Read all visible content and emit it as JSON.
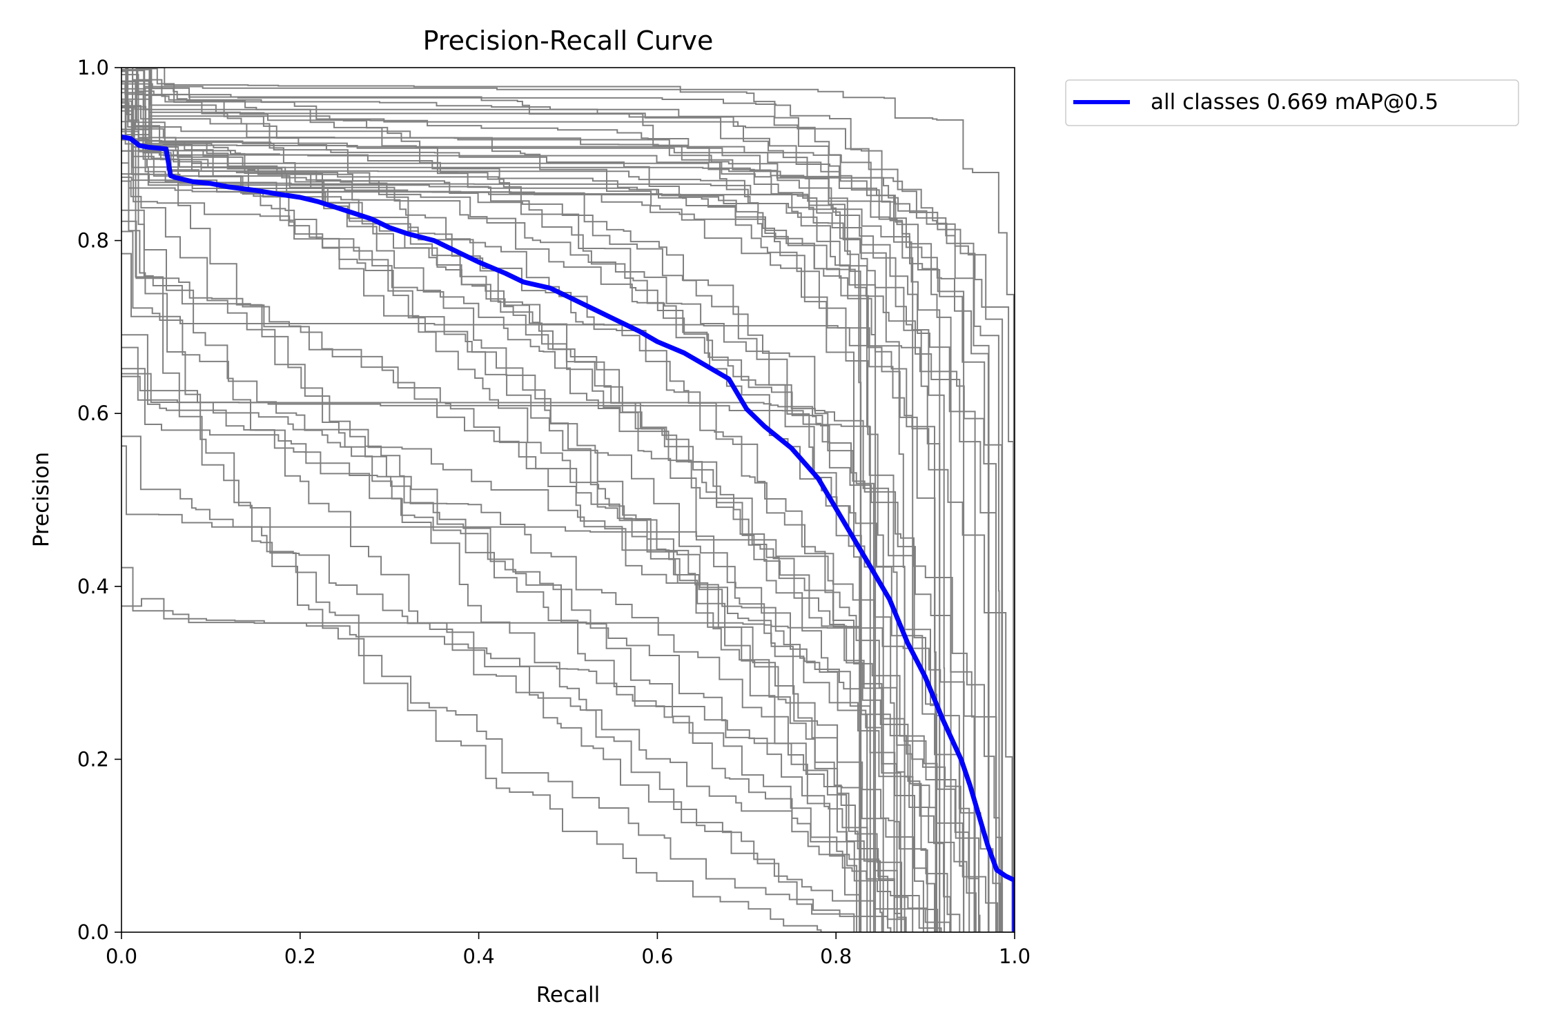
{
  "chart_data": {
    "type": "line",
    "title": "Precision-Recall Curve",
    "xlabel": "Recall",
    "ylabel": "Precision",
    "xlim": [
      0,
      1
    ],
    "ylim": [
      0,
      1
    ],
    "xticks": [
      "0.0",
      "0.2",
      "0.4",
      "0.6",
      "0.8",
      "1.0"
    ],
    "yticks": [
      "0.0",
      "0.2",
      "0.4",
      "0.6",
      "0.8",
      "1.0"
    ],
    "grid": false,
    "legend_position": "outside-top-right",
    "colors": {
      "all": "#0000ff",
      "classes": "#808080"
    },
    "series": [
      {
        "name": "all classes 0.669 mAP@0.5",
        "x": [
          0.0,
          0.01,
          0.02,
          0.03,
          0.05,
          0.055,
          0.06,
          0.08,
          0.1,
          0.12,
          0.15,
          0.18,
          0.2,
          0.22,
          0.25,
          0.28,
          0.3,
          0.32,
          0.35,
          0.38,
          0.4,
          0.43,
          0.45,
          0.48,
          0.5,
          0.53,
          0.55,
          0.58,
          0.6,
          0.63,
          0.65,
          0.68,
          0.7,
          0.72,
          0.75,
          0.78,
          0.8,
          0.82,
          0.84,
          0.86,
          0.88,
          0.9,
          0.92,
          0.94,
          0.95,
          0.96,
          0.97,
          0.98,
          0.99,
          1.0,
          1.0
        ],
        "y": [
          0.92,
          0.918,
          0.91,
          0.908,
          0.906,
          0.875,
          0.873,
          0.868,
          0.866,
          0.862,
          0.858,
          0.853,
          0.85,
          0.845,
          0.835,
          0.825,
          0.815,
          0.808,
          0.8,
          0.785,
          0.775,
          0.762,
          0.752,
          0.745,
          0.735,
          0.72,
          0.71,
          0.695,
          0.683,
          0.67,
          0.658,
          0.64,
          0.605,
          0.585,
          0.56,
          0.525,
          0.49,
          0.455,
          0.42,
          0.385,
          0.335,
          0.295,
          0.245,
          0.2,
          0.17,
          0.135,
          0.1,
          0.072,
          0.065,
          0.06,
          0.0
        ]
      }
    ]
  }
}
